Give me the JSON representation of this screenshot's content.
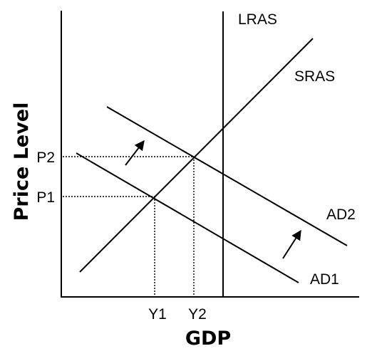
{
  "axes": {
    "x_title": "GDP",
    "y_title": "Price Level"
  },
  "curves": {
    "lras": "LRAS",
    "sras": "SRAS",
    "ad1": "AD1",
    "ad2": "AD2"
  },
  "ticks": {
    "p1": "P1",
    "p2": "P2",
    "y1": "Y1",
    "y2": "Y2"
  }
}
